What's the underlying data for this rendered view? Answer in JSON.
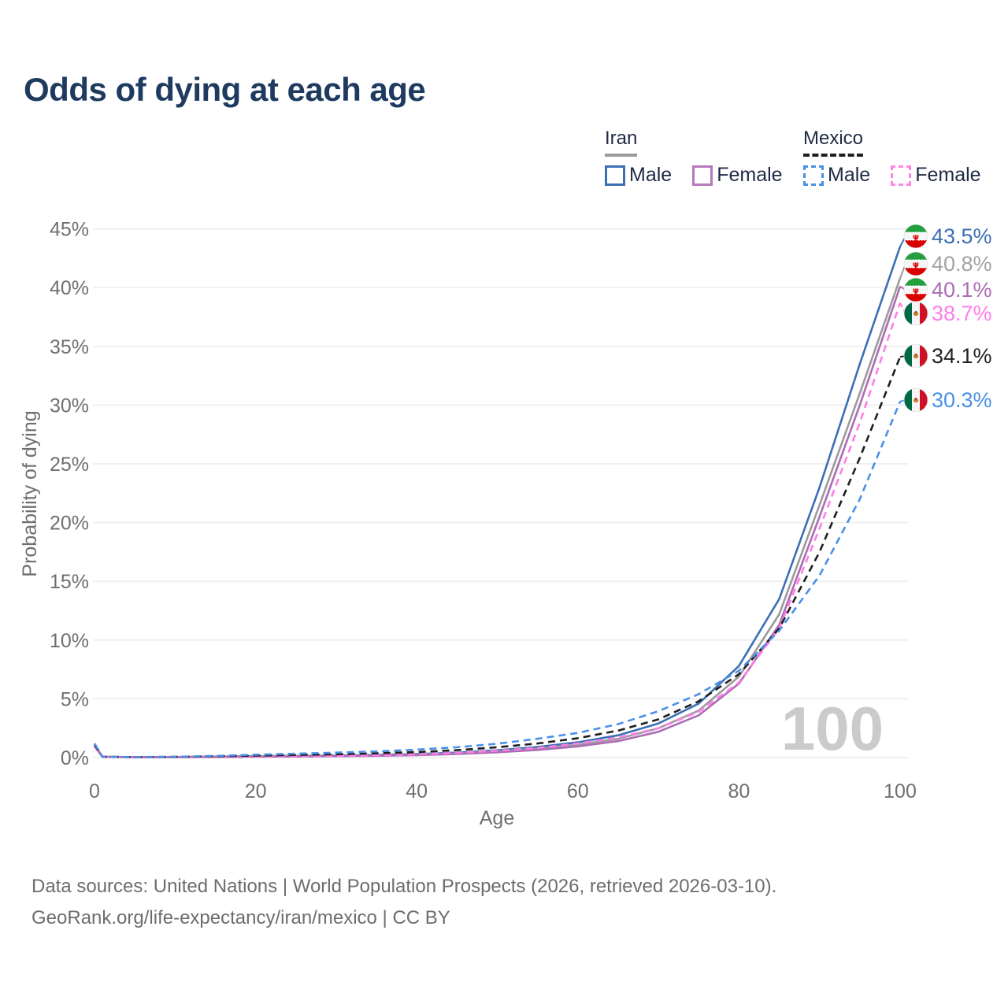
{
  "title": "Odds of dying at each age",
  "watermark_age": "100",
  "legend": {
    "iran": {
      "label": "Iran",
      "male": "Male",
      "female": "Female"
    },
    "mexico": {
      "label": "Mexico",
      "male": "Male",
      "female": "Female"
    }
  },
  "footer": {
    "line1": "Data sources: United Nations | World Population Prospects (2026, retrieved 2026-03-10).",
    "line2": "GeoRank.org/life-expectancy/iran/mexico | CC BY"
  },
  "chart_data": {
    "type": "line",
    "title": "Odds of dying at each age",
    "xlabel": "Age",
    "ylabel": "Probability of dying",
    "xlim": [
      0,
      100
    ],
    "ylim": [
      0,
      45
    ],
    "x_ticks": [
      0,
      20,
      40,
      60,
      80,
      100
    ],
    "y_ticks": [
      0,
      5,
      10,
      15,
      20,
      25,
      30,
      35,
      40,
      45
    ],
    "y_tick_suffix": "%",
    "grid": "horizontal",
    "legend_position": "top-right",
    "ages": [
      0,
      1,
      5,
      10,
      15,
      20,
      25,
      30,
      35,
      40,
      45,
      50,
      55,
      60,
      65,
      70,
      75,
      80,
      85,
      90,
      95,
      100
    ],
    "series": [
      {
        "id": "iran-male",
        "name": "Iran Male",
        "country": "Iran",
        "sex": "Male",
        "color": "#3c6fb6",
        "label_color": "#3c6fb6",
        "dash": false,
        "flag": "iran",
        "end_label": "43.5%",
        "values": [
          1.1,
          0.07,
          0.04,
          0.05,
          0.08,
          0.12,
          0.15,
          0.18,
          0.22,
          0.3,
          0.42,
          0.62,
          0.9,
          1.3,
          1.9,
          2.9,
          4.6,
          7.8,
          13.5,
          23.0,
          33.5,
          43.5
        ]
      },
      {
        "id": "iran-both",
        "name": "Iran Both sexes",
        "country": "Iran",
        "sex": "Both",
        "color": "#9b9b9b",
        "label_color": "#a3a3a3",
        "dash": false,
        "flag": "iran",
        "end_label": "40.8%",
        "values": [
          1.0,
          0.06,
          0.04,
          0.04,
          0.07,
          0.1,
          0.12,
          0.15,
          0.18,
          0.25,
          0.36,
          0.52,
          0.75,
          1.1,
          1.6,
          2.5,
          4.0,
          6.9,
          12.2,
          21.5,
          31.0,
          40.8
        ]
      },
      {
        "id": "iran-female",
        "name": "Iran Female",
        "country": "Iran",
        "sex": "Female",
        "color": "#ad6cb5",
        "label_color": "#ad6cb5",
        "dash": false,
        "flag": "iran",
        "end_label": "40.1%",
        "values": [
          0.95,
          0.06,
          0.03,
          0.04,
          0.05,
          0.07,
          0.09,
          0.12,
          0.15,
          0.21,
          0.31,
          0.45,
          0.65,
          0.95,
          1.4,
          2.2,
          3.6,
          6.3,
          11.3,
          20.5,
          30.0,
          40.1
        ]
      },
      {
        "id": "mexico-female",
        "name": "Mexico Female",
        "country": "Mexico",
        "sex": "Female",
        "color": "#ff7de9",
        "label_color": "#ff7de9",
        "dash": true,
        "flag": "mexico",
        "end_label": "38.7%",
        "values": [
          1.0,
          0.06,
          0.03,
          0.04,
          0.06,
          0.09,
          0.12,
          0.15,
          0.19,
          0.27,
          0.4,
          0.58,
          0.82,
          1.2,
          1.7,
          2.5,
          3.9,
          6.4,
          11.0,
          19.5,
          28.5,
          38.7
        ]
      },
      {
        "id": "mexico-both",
        "name": "Mexico Both sexes",
        "country": "Mexico",
        "sex": "Both",
        "color": "#1f1f1f",
        "label_color": "#222222",
        "dash": true,
        "flag": "mexico",
        "end_label": "34.1%",
        "values": [
          1.1,
          0.07,
          0.04,
          0.06,
          0.1,
          0.17,
          0.22,
          0.28,
          0.36,
          0.47,
          0.63,
          0.88,
          1.2,
          1.65,
          2.3,
          3.25,
          4.8,
          7.1,
          11.0,
          17.5,
          25.5,
          34.1
        ]
      },
      {
        "id": "mexico-male",
        "name": "Mexico Male",
        "country": "Mexico",
        "sex": "Male",
        "color": "#4b90e8",
        "label_color": "#4b90e8",
        "dash": true,
        "flag": "mexico",
        "end_label": "30.3%",
        "values": [
          1.2,
          0.07,
          0.05,
          0.07,
          0.14,
          0.25,
          0.33,
          0.42,
          0.52,
          0.68,
          0.88,
          1.18,
          1.6,
          2.1,
          2.85,
          3.95,
          5.4,
          7.4,
          10.8,
          15.5,
          22.0,
          30.3
        ]
      }
    ],
    "flag_colors": {
      "iran": {
        "top_band": "#239f40",
        "mid_band": "#f6f6f6",
        "bottom_band": "#da0000",
        "emblem": "#da0000"
      },
      "mexico": {
        "left_band": "#006847",
        "mid_band": "#f6f6f6",
        "right_band": "#ce1126",
        "emblem": "#c8812c",
        "emblem_dark": "#8a5a23"
      }
    },
    "gridline_color": "#ececec",
    "watermark_color": "#cbcbcb"
  }
}
